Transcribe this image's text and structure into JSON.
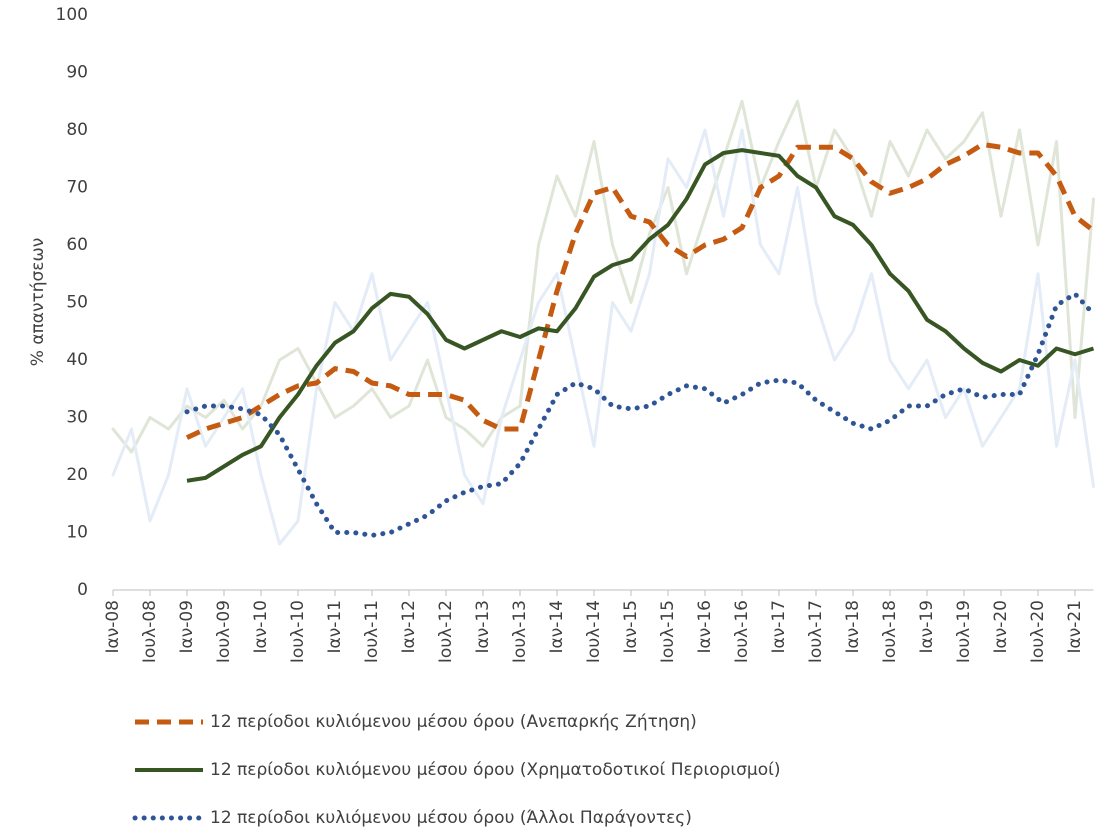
{
  "chart_data": {
    "type": "line",
    "y_label": "% απαντήσεων",
    "categories": [
      "Ιαν-08",
      null,
      "Ιουλ-08",
      null,
      "Ιαν-09",
      null,
      "Ιουλ-09",
      null,
      "Ιαν-10",
      null,
      "Ιουλ-10",
      null,
      "Ιαν-11",
      null,
      "Ιουλ-11",
      null,
      "Ιαν-12",
      null,
      "Ιουλ-12",
      null,
      "Ιαν-13",
      null,
      "Ιουλ-13",
      null,
      "Ιαν-14",
      null,
      "Ιουλ-14",
      null,
      "Ιαν-15",
      null,
      "Ιουλ-15",
      null,
      "Ιαν-16",
      null,
      "Ιουλ-16",
      null,
      "Ιαν-17",
      null,
      "Ιουλ-17",
      null,
      "Ιαν-18",
      null,
      "Ιουλ-18",
      null,
      "Ιαν-19",
      null,
      "Ιουλ-19",
      null,
      "Ιαν-20",
      null,
      "Ιουλ-20",
      null,
      "Ιαν-21",
      null
    ],
    "ylim": [
      0,
      100
    ],
    "yticks": [
      0,
      10,
      20,
      30,
      40,
      50,
      60,
      70,
      80,
      90,
      100
    ],
    "series": [
      {
        "color": "#dfe6d8",
        "values": [
          28,
          24,
          30,
          28,
          32,
          30,
          33,
          28,
          32,
          40,
          42,
          36,
          30,
          32,
          35,
          30,
          32,
          40,
          30,
          28,
          25,
          30,
          32,
          60,
          72,
          65,
          78,
          60,
          50,
          62,
          70,
          55,
          65,
          75,
          85,
          70,
          78,
          85,
          70,
          80,
          75,
          65,
          78,
          72,
          80,
          75,
          78,
          83,
          65,
          80,
          60,
          78,
          30,
          68
        ]
      },
      {
        "color": "#e4ecf8",
        "values": [
          20,
          28,
          12,
          20,
          35,
          25,
          30,
          35,
          20,
          8,
          12,
          35,
          50,
          45,
          55,
          40,
          45,
          50,
          35,
          20,
          15,
          30,
          40,
          50,
          55,
          40,
          25,
          50,
          45,
          55,
          75,
          70,
          80,
          65,
          80,
          60,
          55,
          70,
          50,
          40,
          45,
          55,
          40,
          35,
          40,
          30,
          35,
          25,
          30,
          35,
          55,
          25,
          40,
          18
        ]
      },
      {
        "name": "12 περίοδοι κυλιόμενου μέσου όρου (Ανεπαρκής Ζήτηση)",
        "color": "#c55a11",
        "dash": "dashed",
        "values": [
          null,
          null,
          null,
          null,
          26.5,
          28,
          29,
          30,
          32,
          34,
          35.5,
          36,
          38.5,
          38,
          36,
          35.5,
          34,
          34,
          34,
          33,
          29.5,
          28,
          28,
          40,
          52,
          62,
          69,
          70,
          65,
          64,
          60,
          58,
          60,
          61,
          63,
          70,
          72,
          77,
          77,
          77,
          75,
          71,
          69,
          70,
          71.5,
          74,
          75.5,
          77.5,
          77,
          76,
          76,
          72,
          65,
          62.5
        ]
      },
      {
        "name": "12 περίοδοι κυλιόμενου μέσου όρου (Χρηματοδοτικοί Περιορισμοί)",
        "color": "#375623",
        "dash": "solid",
        "values": [
          null,
          null,
          null,
          null,
          19,
          19.5,
          21.5,
          23.5,
          25,
          30,
          34,
          39,
          43,
          45,
          49,
          51.5,
          51,
          48,
          43.5,
          42,
          43.5,
          45,
          44,
          45.5,
          45,
          49,
          54.5,
          56.5,
          57.5,
          61,
          63.5,
          68,
          74,
          76,
          76.5,
          76,
          75.5,
          72,
          70,
          65,
          63.5,
          60,
          55,
          52,
          47,
          45,
          42,
          39.5,
          38,
          40,
          39,
          42,
          41,
          42
        ]
      },
      {
        "name": "12 περίοδοι κυλιόμενου μέσου όρου (Άλλοι Παράγοντες)",
        "color": "#2f5597",
        "dash": "dotted",
        "values": [
          null,
          null,
          null,
          null,
          31,
          32,
          32,
          31.5,
          30.5,
          27,
          21,
          15,
          10,
          10,
          9.5,
          10,
          11.5,
          13,
          15.5,
          17,
          18,
          18.5,
          22,
          28,
          34,
          36,
          35,
          32,
          31.5,
          32,
          34,
          35.5,
          35,
          32.5,
          34,
          36,
          36.5,
          36,
          33,
          31,
          29,
          28,
          29.5,
          32,
          32,
          34,
          35,
          33.5,
          34,
          34,
          41,
          49.5,
          51.5,
          48
        ]
      }
    ]
  }
}
